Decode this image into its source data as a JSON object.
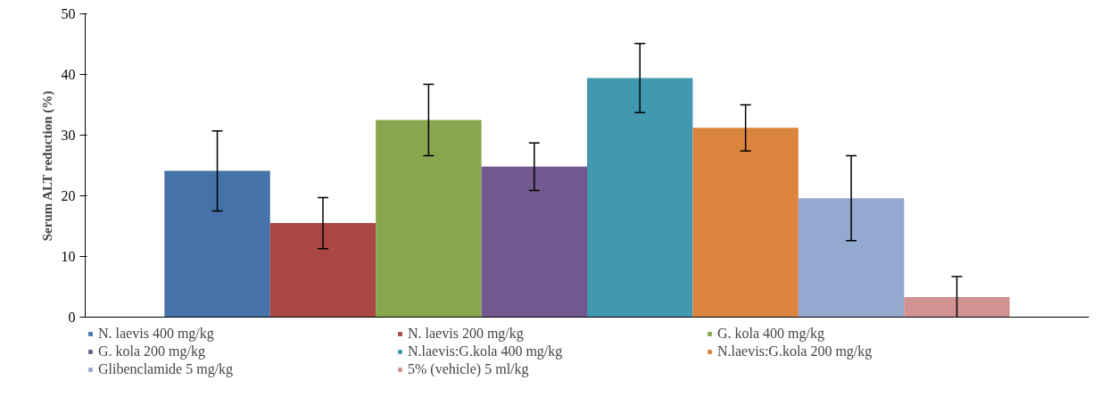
{
  "chart_data": {
    "type": "bar",
    "ylabel": "Serum ALT reduction (%)",
    "categories": [
      null
    ],
    "series": [
      {
        "name": "N. laevis 400 mg/kg",
        "color": "#4572a7",
        "values": [
          24.1
        ],
        "errors": [
          6.6
        ]
      },
      {
        "name": "N. laevis 200 mg/kg",
        "color": "#aa4643",
        "values": [
          15.5
        ],
        "errors": [
          4.2
        ]
      },
      {
        "name": "G. kola 400 mg/kg",
        "color": "#89a54e",
        "values": [
          32.5
        ],
        "errors": [
          5.9
        ]
      },
      {
        "name": "G. kola 200 mg/kg",
        "color": "#71588f",
        "values": [
          24.8
        ],
        "errors": [
          3.9
        ]
      },
      {
        "name": "N.laevis:G.kola 400 mg/kg",
        "color": "#4198af",
        "values": [
          39.4
        ],
        "errors": [
          5.7
        ]
      },
      {
        "name": "N.laevis:G.kola 200 mg/kg",
        "color": "#db843d",
        "values": [
          31.2
        ],
        "errors": [
          3.8
        ]
      },
      {
        "name": "Glibenclamide 5 mg/kg",
        "color": "#93a9cf",
        "values": [
          19.6
        ],
        "errors": [
          7.0
        ]
      },
      {
        "name": "5% (vehicle) 5 ml/kg",
        "color": "#d19392",
        "values": [
          3.3
        ],
        "errors": [
          3.4
        ]
      }
    ],
    "ylim": [
      0,
      50
    ],
    "yticks": [
      0,
      10,
      20,
      30,
      40,
      50
    ],
    "grid": false,
    "legend": "bottom"
  }
}
